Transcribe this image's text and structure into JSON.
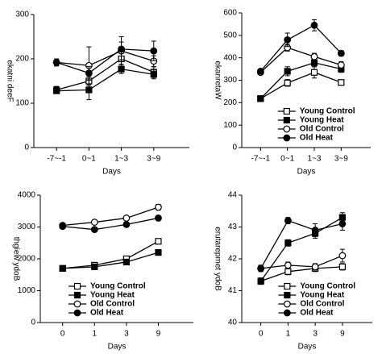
{
  "chart_data": [
    {
      "type": "line",
      "x_label": "Days",
      "y_label": "ekatni deeF",
      "categories": [
        "-7~-1",
        "0~1",
        "1~3",
        "3~9"
      ],
      "ylim": [
        0,
        300
      ],
      "yticks": [
        0,
        100,
        200,
        300
      ],
      "legend": false,
      "series": [
        {
          "name": "Young Control",
          "color": "#000000",
          "marker": "open-square",
          "values": [
            130,
            150,
            200,
            170
          ],
          "errors": [
            8,
            10,
            12,
            12
          ]
        },
        {
          "name": "Young Heat",
          "color": "#000000",
          "marker": "filled-square",
          "values": [
            128,
            130,
            177,
            165
          ],
          "errors": [
            6,
            22,
            10,
            10
          ]
        },
        {
          "name": "Old Control",
          "color": "#000000",
          "marker": "open-circle",
          "values": [
            192,
            185,
            218,
            195
          ],
          "errors": [
            8,
            42,
            20,
            12
          ]
        },
        {
          "name": "Old Heat",
          "color": "#000000",
          "marker": "filled-circle",
          "values": [
            192,
            168,
            222,
            218
          ],
          "errors": [
            8,
            15,
            28,
            22
          ]
        }
      ]
    },
    {
      "type": "line",
      "x_label": "Days",
      "y_label": "ekanretaW",
      "categories": [
        "-7~-1",
        "0~1",
        "1~3",
        "3~9"
      ],
      "ylim": [
        0,
        600
      ],
      "yticks": [
        0,
        100,
        200,
        300,
        400,
        500,
        600
      ],
      "legend": "lower center",
      "series": [
        {
          "name": "Young Control",
          "color": "#000000",
          "marker": "open-square",
          "values": [
            218,
            288,
            335,
            290
          ],
          "errors": [
            8,
            15,
            25,
            8
          ]
        },
        {
          "name": "Young Heat",
          "color": "#000000",
          "marker": "filled-square",
          "values": [
            218,
            340,
            378,
            350
          ],
          "errors": [
            8,
            20,
            18,
            15
          ]
        },
        {
          "name": "Old Control",
          "color": "#000000",
          "marker": "open-circle",
          "values": [
            335,
            445,
            405,
            368
          ],
          "errors": [
            8,
            15,
            15,
            15
          ]
        },
        {
          "name": "Old Heat",
          "color": "#000000",
          "marker": "filled-circle",
          "values": [
            340,
            480,
            545,
            420
          ],
          "errors": [
            8,
            30,
            25,
            12
          ]
        }
      ]
    },
    {
      "type": "line",
      "x_label": "Days",
      "y_label": "thgiew ydoB",
      "categories": [
        "0",
        "1",
        "3",
        "9"
      ],
      "ylim": [
        0,
        4000
      ],
      "yticks": [
        0,
        1000,
        2000,
        3000,
        4000
      ],
      "legend": "lower left",
      "series": [
        {
          "name": "Young Control",
          "color": "#000000",
          "marker": "open-square",
          "values": [
            1700,
            1800,
            2000,
            2550
          ],
          "errors": [
            40,
            40,
            50,
            50
          ]
        },
        {
          "name": "Young Heat",
          "color": "#000000",
          "marker": "filled-square",
          "values": [
            1700,
            1750,
            1900,
            2200
          ],
          "errors": [
            40,
            40,
            50,
            50
          ]
        },
        {
          "name": "Old Control",
          "color": "#000000",
          "marker": "open-circle",
          "values": [
            3050,
            3150,
            3280,
            3620
          ],
          "errors": [
            60,
            60,
            70,
            90
          ]
        },
        {
          "name": "Old Heat",
          "color": "#000000",
          "marker": "filled-circle",
          "values": [
            3020,
            2920,
            3080,
            3280
          ],
          "errors": [
            60,
            60,
            70,
            80
          ]
        }
      ]
    },
    {
      "type": "line",
      "x_label": "Days",
      "y_label": "erutarepmet ydoB",
      "categories": [
        "0",
        "1",
        "3",
        "9"
      ],
      "ylim": [
        40,
        44
      ],
      "yticks": [
        40,
        41,
        42,
        43,
        44
      ],
      "legend": "lower center",
      "series": [
        {
          "name": "Young Control",
          "color": "#000000",
          "marker": "open-square",
          "values": [
            41.3,
            41.6,
            41.7,
            41.75
          ],
          "errors": [
            0.1,
            0.1,
            0.1,
            0.1
          ]
        },
        {
          "name": "Young Heat",
          "color": "#000000",
          "marker": "filled-square",
          "values": [
            41.3,
            42.5,
            42.8,
            43.3
          ],
          "errors": [
            0.1,
            0.1,
            0.15,
            0.15
          ]
        },
        {
          "name": "Old Control",
          "color": "#000000",
          "marker": "open-circle",
          "values": [
            41.7,
            41.8,
            41.75,
            42.1
          ],
          "errors": [
            0.1,
            0.1,
            0.1,
            0.2
          ]
        },
        {
          "name": "Old Heat",
          "color": "#000000",
          "marker": "filled-circle",
          "values": [
            41.7,
            43.2,
            42.9,
            43.1
          ],
          "errors": [
            0.1,
            0.1,
            0.2,
            0.2
          ]
        }
      ]
    }
  ]
}
